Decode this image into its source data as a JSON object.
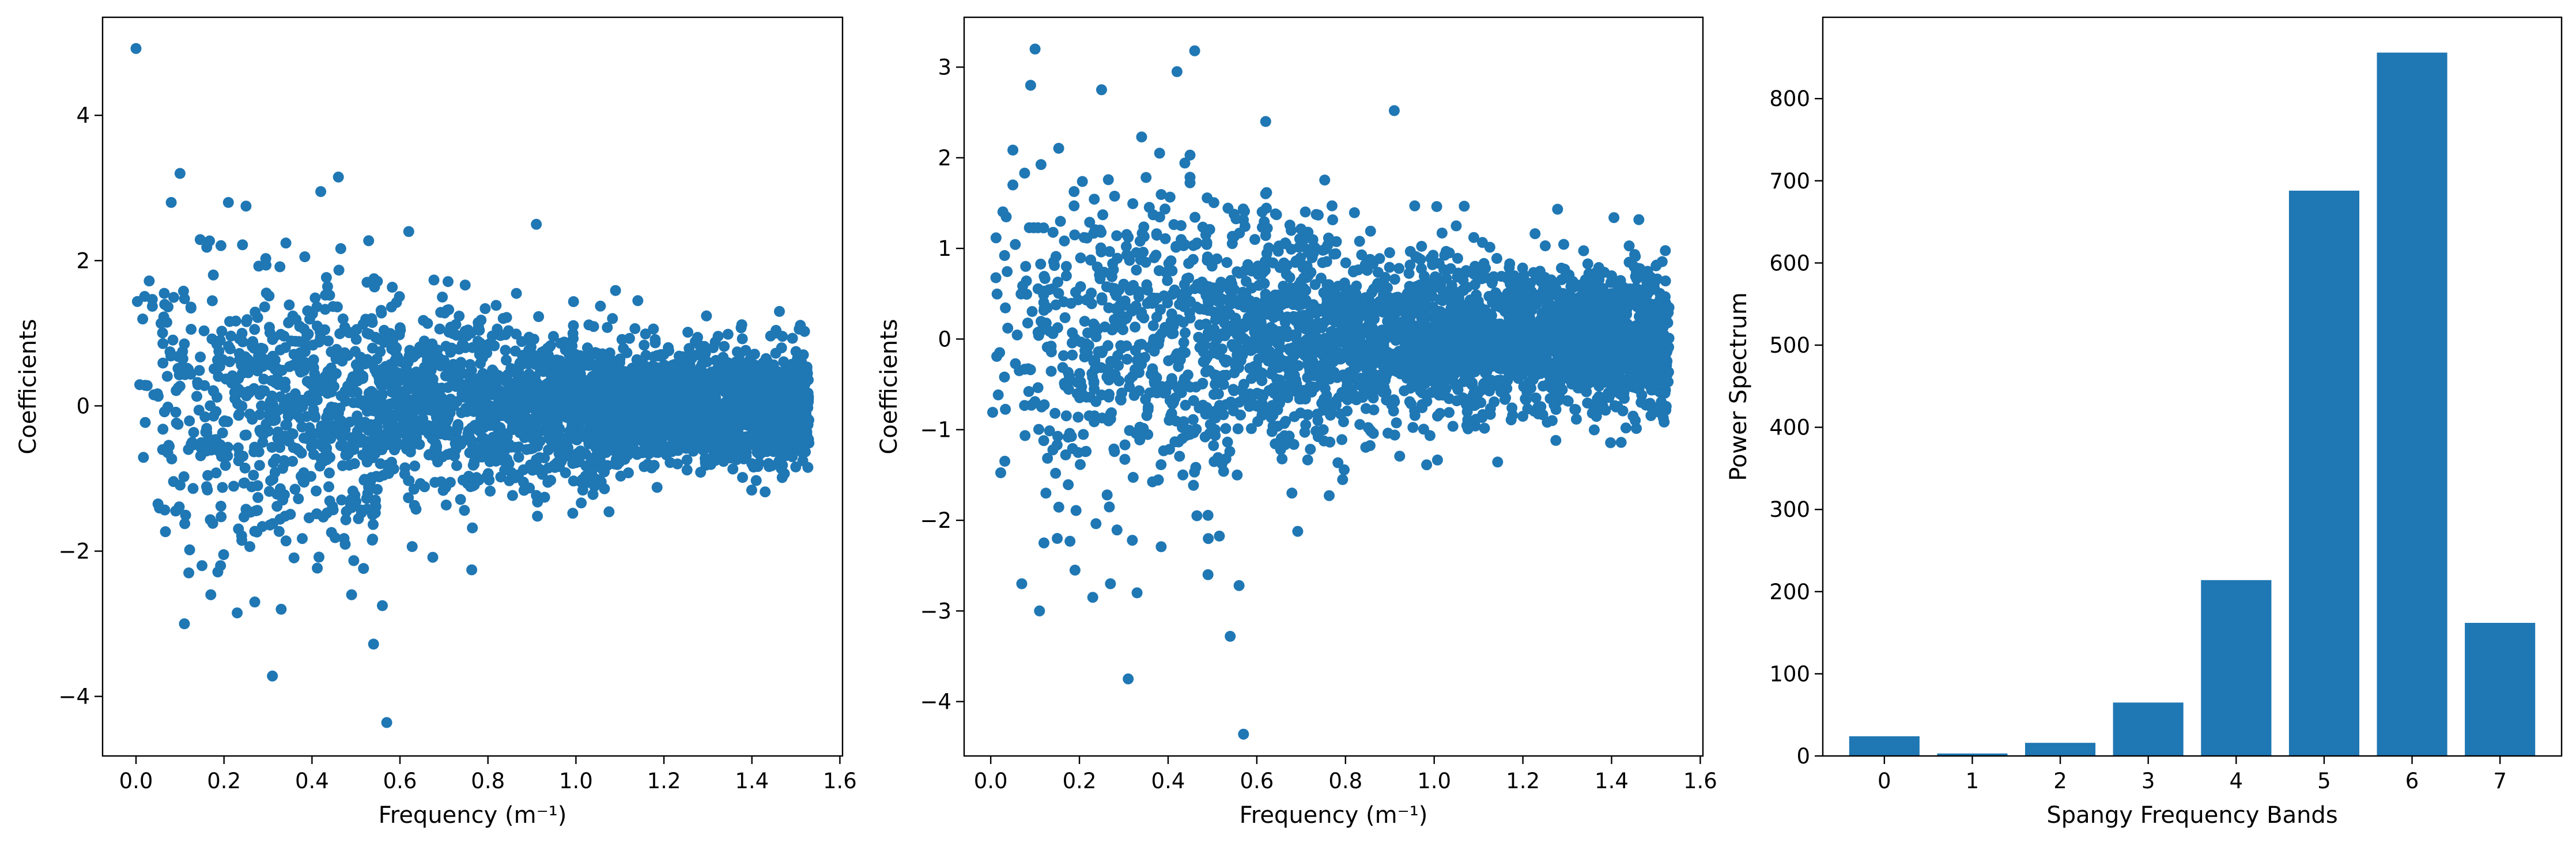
{
  "chart_data": [
    {
      "type": "scatter",
      "xlabel": "Frequency (m⁻¹)",
      "ylabel": "Coefficients",
      "xlim": [
        -0.076,
        1.606
      ],
      "ylim": [
        -4.82,
        5.35
      ],
      "xticks": [
        0.0,
        0.2,
        0.4,
        0.6,
        0.8,
        1.0,
        1.2,
        1.4,
        1.6
      ],
      "yticks": [
        -4,
        -2,
        0,
        2,
        4
      ],
      "tick_labels_x": [
        "0.0",
        "0.2",
        "0.4",
        "0.6",
        "0.8",
        "1.0",
        "1.2",
        "1.4",
        "1.6"
      ],
      "tick_labels_y": [
        "−4",
        "−2",
        "0",
        "2",
        "4"
      ],
      "grid": false,
      "color": "#1f77b4",
      "series": [
        {
          "values": [
            {
              "x": 0.0,
              "y": 4.92
            },
            {
              "x": 0.03,
              "y": 1.72
            },
            {
              "x": 0.05,
              "y": -1.35
            },
            {
              "x": 0.07,
              "y": 1.15
            },
            {
              "x": 0.08,
              "y": 2.8
            },
            {
              "x": 0.1,
              "y": 3.2
            },
            {
              "x": 0.11,
              "y": -3.0
            },
            {
              "x": 0.12,
              "y": -2.3
            },
            {
              "x": 0.15,
              "y": -2.2
            },
            {
              "x": 0.17,
              "y": -2.6
            },
            {
              "x": 0.21,
              "y": 2.8
            },
            {
              "x": 0.23,
              "y": -2.85
            },
            {
              "x": 0.25,
              "y": 2.75
            },
            {
              "x": 0.27,
              "y": -2.7
            },
            {
              "x": 0.31,
              "y": -3.72
            },
            {
              "x": 0.33,
              "y": -2.8
            },
            {
              "x": 0.42,
              "y": 2.95
            },
            {
              "x": 0.46,
              "y": 3.15
            },
            {
              "x": 0.49,
              "y": -2.6
            },
            {
              "x": 0.54,
              "y": -3.28
            },
            {
              "x": 0.57,
              "y": -4.36
            },
            {
              "x": 0.56,
              "y": -2.75
            },
            {
              "x": 0.62,
              "y": 2.4
            },
            {
              "x": 0.91,
              "y": 2.5
            }
          ]
        }
      ]
    },
    {
      "type": "scatter",
      "xlabel": "Frequency (m⁻¹)",
      "ylabel": "Coefficients",
      "xlim": [
        -0.06,
        1.606
      ],
      "ylim": [
        -4.6,
        3.55
      ],
      "xticks": [
        0.0,
        0.2,
        0.4,
        0.6,
        0.8,
        1.0,
        1.2,
        1.4,
        1.6
      ],
      "yticks": [
        -4,
        -3,
        -2,
        -1,
        0,
        1,
        2,
        3
      ],
      "tick_labels_x": [
        "0.0",
        "0.2",
        "0.4",
        "0.6",
        "0.8",
        "1.0",
        "1.2",
        "1.4",
        "1.6"
      ],
      "tick_labels_y": [
        "−4",
        "−3",
        "−2",
        "−1",
        "0",
        "1",
        "2",
        "3"
      ],
      "grid": false,
      "color": "#1f77b4",
      "series": [
        {
          "values": [
            {
              "x": 0.02,
              "y": -0.15
            },
            {
              "x": 0.05,
              "y": 1.7
            },
            {
              "x": 0.07,
              "y": -2.7
            },
            {
              "x": 0.09,
              "y": 2.8
            },
            {
              "x": 0.1,
              "y": 3.2
            },
            {
              "x": 0.11,
              "y": -3.0
            },
            {
              "x": 0.12,
              "y": -2.25
            },
            {
              "x": 0.15,
              "y": -2.2
            },
            {
              "x": 0.19,
              "y": -2.55
            },
            {
              "x": 0.23,
              "y": -2.85
            },
            {
              "x": 0.25,
              "y": 2.75
            },
            {
              "x": 0.27,
              "y": -2.7
            },
            {
              "x": 0.31,
              "y": -3.75
            },
            {
              "x": 0.33,
              "y": -2.8
            },
            {
              "x": 0.42,
              "y": 2.95
            },
            {
              "x": 0.46,
              "y": 3.18
            },
            {
              "x": 0.49,
              "y": -2.6
            },
            {
              "x": 0.54,
              "y": -3.28
            },
            {
              "x": 0.57,
              "y": -4.36
            },
            {
              "x": 0.56,
              "y": -2.72
            },
            {
              "x": 0.62,
              "y": 2.4
            },
            {
              "x": 0.91,
              "y": 2.52
            }
          ]
        }
      ]
    },
    {
      "type": "bar",
      "xlabel": "Spangy Frequency Bands",
      "ylabel": "Power Spectrum",
      "categories": [
        "0",
        "1",
        "2",
        "3",
        "4",
        "5",
        "6",
        "7"
      ],
      "values": [
        24,
        3,
        16,
        65,
        214,
        688,
        856,
        162
      ],
      "ylim": [
        0,
        899
      ],
      "yticks": [
        0,
        100,
        200,
        300,
        400,
        500,
        600,
        700,
        800
      ],
      "tick_labels_y": [
        "0",
        "100",
        "200",
        "300",
        "400",
        "500",
        "600",
        "700",
        "800"
      ],
      "grid": false,
      "color": "#1f77b4"
    }
  ]
}
